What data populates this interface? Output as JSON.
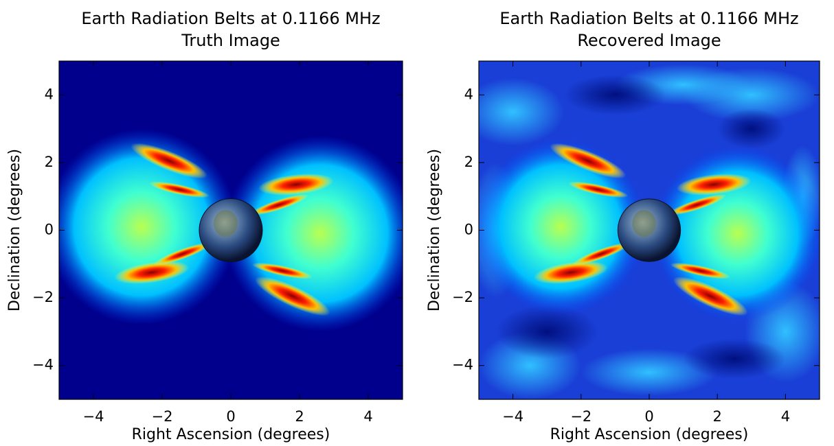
{
  "chart_data": [
    {
      "type": "image",
      "title": "Earth Radiation Belts at 0.1166 MHz",
      "subtitle": "Truth Image",
      "xlabel": "Right Ascension (degrees)",
      "ylabel": "Declination (degrees)",
      "xlim": [
        -5,
        5
      ],
      "ylim": [
        -5,
        5
      ],
      "xticks": [
        {
          "value": -4,
          "label": "−4"
        },
        {
          "value": -2,
          "label": "−2"
        },
        0,
        2,
        4
      ],
      "yticks": [
        {
          "value": -4,
          "label": "−4"
        },
        {
          "value": -2,
          "label": "−2"
        },
        0,
        2,
        4
      ],
      "background": "#00008c"
    },
    {
      "type": "image",
      "title": "Earth Radiation Belts at 0.1166 MHz",
      "subtitle": "Recovered Image",
      "xlabel": "Right Ascension (degrees)",
      "ylabel": "Declination (degrees)",
      "xlim": [
        -5,
        5
      ],
      "ylim": [
        -5,
        5
      ],
      "xticks": [
        {
          "value": -4,
          "label": "−4"
        },
        {
          "value": -2,
          "label": "−2"
        },
        0,
        2,
        4
      ],
      "yticks": [
        {
          "value": -4,
          "label": "−4"
        },
        {
          "value": -2,
          "label": "−2"
        },
        0,
        2,
        4
      ],
      "background": "#1a3fd6"
    }
  ]
}
